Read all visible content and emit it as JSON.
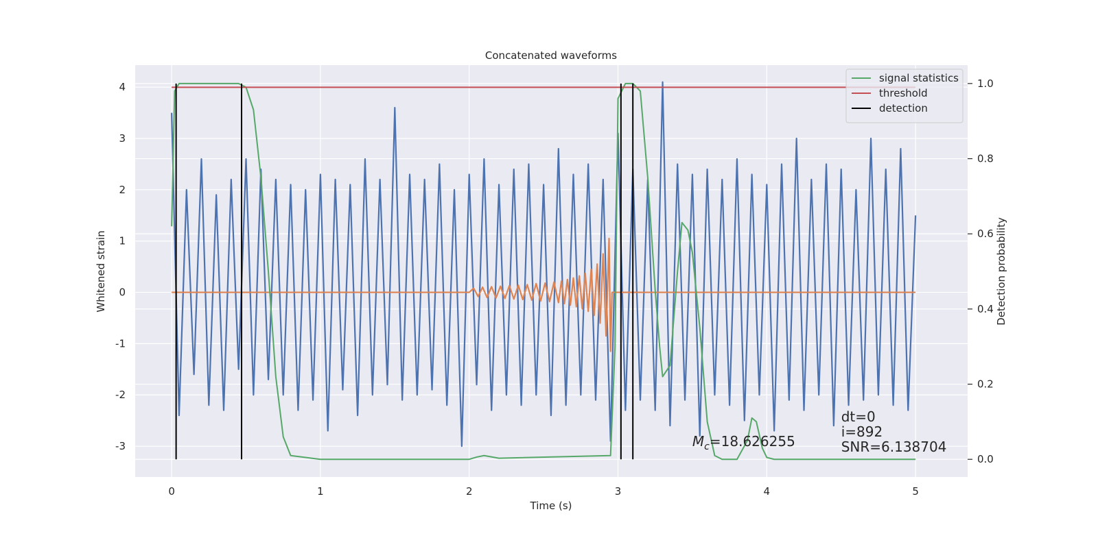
{
  "chart_data": {
    "type": "line",
    "title": "Concatenated waveforms",
    "xlabel": "Time (s)",
    "ylabel": "Whitened strain",
    "y2label": "Detection probability",
    "xlim": [
      -0.245,
      5.35
    ],
    "ylim": [
      -3.6,
      4.43
    ],
    "y2lim": [
      -0.047,
      1.049
    ],
    "xticks": [
      0,
      1,
      2,
      3,
      4,
      5
    ],
    "yticks": [
      -3,
      -2,
      -1,
      0,
      1,
      2,
      3,
      4
    ],
    "y2ticks": [
      {
        "value": 0,
        "label": "0.0"
      },
      0.2,
      0.4,
      0.6,
      0.8,
      {
        "value": 1,
        "label": "1.0"
      }
    ],
    "grid": true,
    "legend_loc": "upper right",
    "series": [
      {
        "color": "#4c72b0",
        "x": [
          0,
          0.05,
          0.1,
          0.15,
          0.2,
          0.25,
          0.3,
          0.35,
          0.4,
          0.45,
          0.5,
          0.55,
          0.6,
          0.65,
          0.7,
          0.75,
          0.8,
          0.85,
          0.9,
          0.95,
          1,
          1.05,
          1.1,
          1.15,
          1.2,
          1.25,
          1.3,
          1.35,
          1.4,
          1.45,
          1.5,
          1.55,
          1.6,
          1.65,
          1.7,
          1.75,
          1.8,
          1.85,
          1.9,
          1.95,
          2,
          2.05,
          2.1,
          2.15,
          2.2,
          2.25,
          2.3,
          2.35,
          2.4,
          2.45,
          2.5,
          2.55,
          2.6,
          2.65,
          2.7,
          2.75,
          2.8,
          2.85,
          2.9,
          2.95,
          3,
          3.05,
          3.1,
          3.15,
          3.2,
          3.25,
          3.3,
          3.35,
          3.4,
          3.45,
          3.5,
          3.55,
          3.6,
          3.65,
          3.7,
          3.75,
          3.8,
          3.85,
          3.9,
          3.95,
          4,
          4.05,
          4.1,
          4.15,
          4.2,
          4.25,
          4.3,
          4.35,
          4.4,
          4.45,
          4.5,
          4.55,
          4.6,
          4.65,
          4.7,
          4.75,
          4.8,
          4.85,
          4.9,
          4.95,
          5
        ],
        "values": [
          3.5,
          -2.4,
          2.0,
          -1.6,
          2.6,
          -2.2,
          1.9,
          -2.3,
          2.2,
          -1.5,
          2.6,
          -2.0,
          2.4,
          -1.7,
          2.2,
          -2.0,
          2.1,
          -2.3,
          2.0,
          -2.1,
          2.3,
          -2.7,
          2.2,
          -1.9,
          2.1,
          -2.4,
          2.6,
          -2.0,
          2.2,
          -1.8,
          3.6,
          -2.1,
          2.3,
          -2.0,
          2.2,
          -1.9,
          2.5,
          -2.2,
          2.0,
          -3.0,
          2.3,
          -1.8,
          2.6,
          -2.3,
          2.1,
          -2.0,
          2.4,
          -2.2,
          2.5,
          -2.0,
          2.1,
          -2.4,
          2.8,
          -2.2,
          2.3,
          -2.0,
          2.5,
          -2.1,
          2.2,
          -2.9,
          3.1,
          -2.3,
          2.4,
          -2.1,
          2.2,
          -2.3,
          4.1,
          -2.6,
          2.5,
          -2.1,
          2.3,
          -2.8,
          2.4,
          -2.0,
          2.2,
          -2.2,
          2.6,
          -2.5,
          2.3,
          -2.0,
          2.1,
          -2.7,
          2.5,
          -2.1,
          3.0,
          -2.3,
          2.2,
          -2.0,
          2.5,
          -2.6,
          2.4,
          -2.2,
          2.0,
          -2.1,
          3.0,
          -2.0,
          2.4,
          -2.2,
          2.8,
          -2.3,
          1.5
        ]
      },
      {
        "color": "#dd8452",
        "x": [
          0,
          2.0,
          2.03,
          2.06,
          2.09,
          2.12,
          2.15,
          2.18,
          2.21,
          2.24,
          2.27,
          2.3,
          2.33,
          2.36,
          2.39,
          2.42,
          2.45,
          2.48,
          2.51,
          2.54,
          2.57,
          2.6,
          2.62,
          2.64,
          2.66,
          2.68,
          2.7,
          2.72,
          2.74,
          2.76,
          2.78,
          2.8,
          2.82,
          2.84,
          2.86,
          2.88,
          2.9,
          2.92,
          2.94,
          2.95,
          2.96,
          5
        ],
        "values": [
          0,
          0,
          0.08,
          -0.08,
          0.1,
          -0.1,
          0.11,
          -0.11,
          0.12,
          -0.12,
          0.13,
          -0.13,
          0.14,
          -0.14,
          0.15,
          -0.15,
          0.17,
          -0.17,
          0.18,
          -0.18,
          0.2,
          -0.2,
          0.22,
          -0.22,
          0.25,
          -0.25,
          0.28,
          -0.28,
          0.32,
          -0.32,
          0.37,
          -0.37,
          0.45,
          -0.45,
          0.55,
          -0.6,
          0.75,
          -0.85,
          1.05,
          -1.15,
          0,
          0
        ]
      },
      {
        "name": "signal statistics",
        "color": "#55a868",
        "axis": "y2",
        "x": [
          0,
          0.02,
          0.05,
          0.1,
          0.3,
          0.45,
          0.5,
          0.55,
          0.6,
          0.65,
          0.7,
          0.75,
          0.8,
          1,
          2,
          2.05,
          2.1,
          2.2,
          2.95,
          2.98,
          3.0,
          3.05,
          3.1,
          3.15,
          3.2,
          3.25,
          3.28,
          3.3,
          3.35,
          3.4,
          3.43,
          3.47,
          3.5,
          3.55,
          3.6,
          3.65,
          3.7,
          3.8,
          3.87,
          3.9,
          3.93,
          3.97,
          4.0,
          4.05,
          4.1,
          5
        ],
        "values": [
          0.62,
          0.98,
          1.0,
          1.0,
          1.0,
          1.0,
          0.99,
          0.93,
          0.75,
          0.5,
          0.22,
          0.06,
          0.01,
          0.0,
          0.0,
          0.006,
          0.01,
          0.003,
          0.01,
          0.3,
          0.96,
          1.0,
          1.0,
          0.98,
          0.75,
          0.45,
          0.3,
          0.22,
          0.25,
          0.5,
          0.63,
          0.61,
          0.55,
          0.35,
          0.1,
          0.01,
          0.0,
          0.0,
          0.05,
          0.11,
          0.1,
          0.03,
          0.005,
          0.0,
          0.0,
          0.0
        ]
      },
      {
        "name": "threshold",
        "color": "#c44e52",
        "axis": "y2",
        "x": [
          0,
          5
        ],
        "values": [
          0.99,
          0.99
        ]
      }
    ],
    "vlines": {
      "name": "detection",
      "color": "#000000",
      "axis": "y2",
      "x": [
        0.03,
        0.47,
        3.02,
        3.1
      ],
      "ymin": 0,
      "ymax": 1
    },
    "annotations": {
      "chirp_mass": {
        "symbol": "M",
        "subscript": "c",
        "text": "=18.626255"
      },
      "info": [
        "dt=0",
        "i=892",
        "SNR=6.138704"
      ]
    }
  }
}
